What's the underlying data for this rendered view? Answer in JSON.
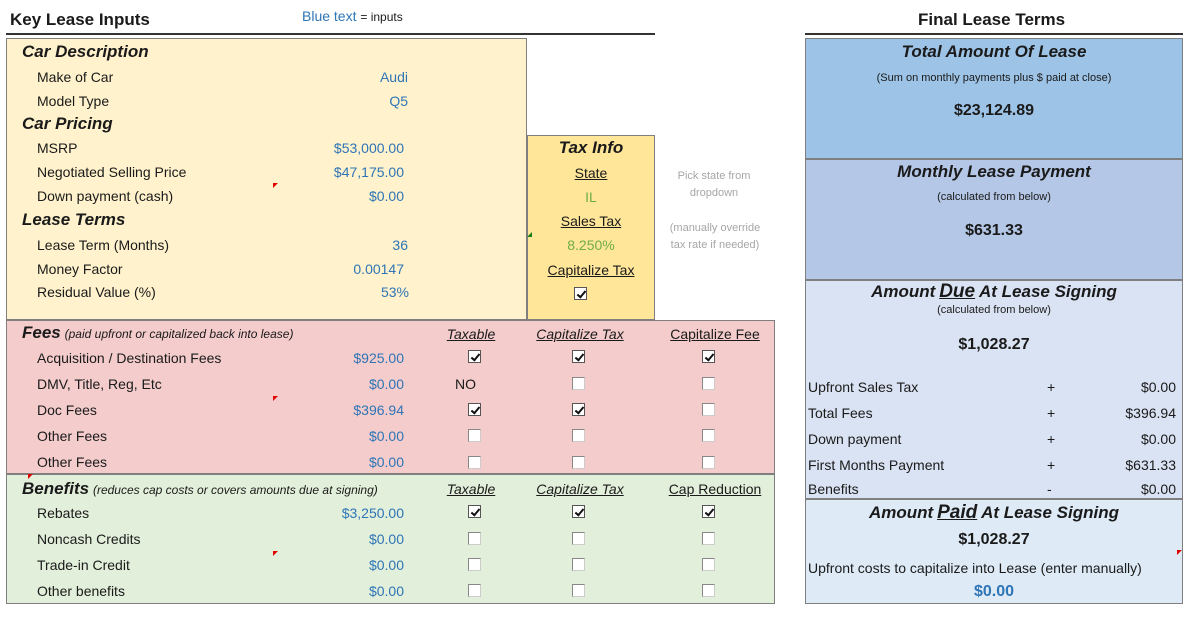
{
  "header": {
    "title": "Key Lease Inputs",
    "legend_blue": "Blue text",
    "legend_rest": "= inputs",
    "right_title": "Final Lease Terms"
  },
  "car_description": {
    "heading": "Car Description",
    "make_label": "Make of Car",
    "make_value": "Audi",
    "model_label": "Model Type",
    "model_value": "Q5"
  },
  "car_pricing": {
    "heading": "Car Pricing",
    "msrp_label": "MSRP",
    "msrp_value": "$53,000.00",
    "nsp_label": "Negotiated Selling Price",
    "nsp_value": "$47,175.00",
    "down_label": "Down payment (cash)",
    "down_value": "$0.00"
  },
  "lease_terms": {
    "heading": "Lease Terms",
    "term_label": "Lease Term (Months)",
    "term_value": "36",
    "mf_label": "Money Factor",
    "mf_value": "0.00147",
    "rv_label": "Residual Value (%)",
    "rv_value": "53%"
  },
  "tax_info": {
    "heading": "Tax Info",
    "state_label": "State",
    "state_value": "IL",
    "sales_tax_label": "Sales Tax",
    "sales_tax_value": "8.250%",
    "cap_tax_label": "Capitalize Tax",
    "cap_tax_checked": true,
    "note_state": [
      "Pick state from",
      "dropdown"
    ],
    "note_override": [
      "(manually override",
      "tax rate if needed)"
    ]
  },
  "fees": {
    "heading": "Fees",
    "subheading": "(paid upfront or capitalized back into lease)",
    "col_taxable": "Taxable",
    "col_cap_tax": "Capitalize Tax",
    "col_cap_fee": "Capitalize Fee",
    "rows": [
      {
        "label": "Acquisition / Destination Fees",
        "value": "$925.00",
        "taxable": true,
        "cap_tax": true,
        "cap_fee": true
      },
      {
        "label": "DMV, Title, Reg, Etc",
        "value": "$0.00",
        "taxable_text": "NO",
        "cap_tax": false,
        "cap_fee": false
      },
      {
        "label": "Doc Fees",
        "value": "$396.94",
        "taxable": true,
        "cap_tax": true,
        "cap_fee": false
      },
      {
        "label": "Other Fees",
        "value": "$0.00",
        "taxable": false,
        "cap_tax": false,
        "cap_fee": false
      },
      {
        "label": "Other Fees",
        "value": "$0.00",
        "taxable": false,
        "cap_tax": false,
        "cap_fee": false
      }
    ]
  },
  "benefits": {
    "heading": "Benefits",
    "subheading": "(reduces cap costs or covers amounts due at signing)",
    "col_taxable": "Taxable",
    "col_cap_tax": "Capitalize Tax",
    "col_cap_red": "Cap Reduction",
    "rows": [
      {
        "label": "Rebates",
        "value": "$3,250.00",
        "taxable": true,
        "cap_tax": true,
        "cap_red": true
      },
      {
        "label": "Noncash Credits",
        "value": "$0.00",
        "taxable": false,
        "cap_tax": false,
        "cap_red": false
      },
      {
        "label": "Trade-in Credit",
        "value": "$0.00",
        "taxable": false,
        "cap_tax": false,
        "cap_red": false
      },
      {
        "label": "Other benefits",
        "value": "$0.00",
        "taxable": false,
        "cap_tax": false,
        "cap_red": false
      }
    ]
  },
  "final": {
    "total": {
      "heading": "Total Amount Of Lease",
      "note": "(Sum on monthly payments plus $ paid at close)",
      "value": "$23,124.89"
    },
    "monthly": {
      "heading": "Monthly Lease Payment",
      "note": "(calculated from below)",
      "value": "$631.33"
    },
    "due": {
      "heading_pre": "Amount",
      "heading_key": "Due",
      "heading_post": "At Lease Signing",
      "note": "(calculated from below)",
      "value": "$1,028.27",
      "rows": [
        {
          "label": "Upfront Sales Tax",
          "op": "+",
          "value": "$0.00"
        },
        {
          "label": "Total Fees",
          "op": "+",
          "value": "$396.94"
        },
        {
          "label": "Down payment",
          "op": "+",
          "value": "$0.00"
        },
        {
          "label": "First Months Payment",
          "op": "+",
          "value": "$631.33"
        },
        {
          "label": "Benefits",
          "op": "-",
          "value": "$0.00"
        }
      ]
    },
    "paid": {
      "heading_pre": "Amount",
      "heading_key": "Paid",
      "heading_post": "At Lease Signing",
      "value": "$1,028.27",
      "upfront_label": "Upfront costs to capitalize into Lease (enter manually)",
      "upfront_value": "$0.00"
    }
  },
  "colors": {
    "input_blue": "#2e75b6",
    "green_text": "#70ad47",
    "yellow_bg": "#fff2cc",
    "pink_bg": "#f4cccc",
    "green_bg": "#e2efda",
    "orange_bg": "#ffe699",
    "sky_bg": "#9dc3e6",
    "periwinkle_bg": "#b4c7e7",
    "lavender_bg": "#dae3f3",
    "pale_blue_bg": "#deebf7"
  }
}
